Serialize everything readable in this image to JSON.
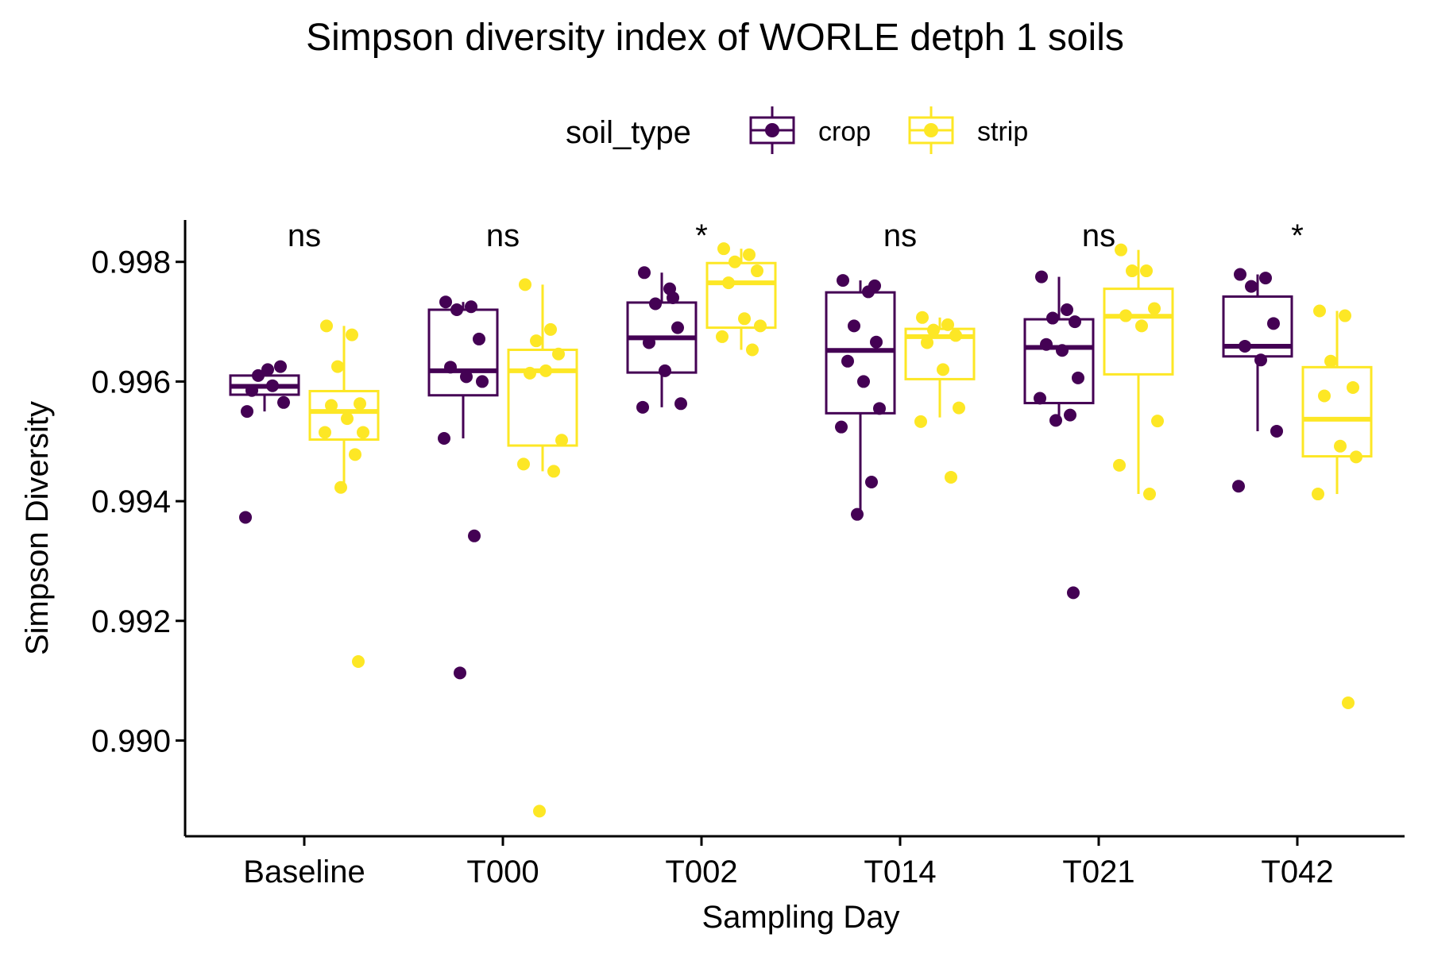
{
  "chart_data": {
    "type": "boxplot",
    "title": "Simpson diversity index of WORLE detph 1 soils",
    "xlabel": "Sampling Day",
    "ylabel": "Simpson Diversity",
    "ylim": [
      0.9884,
      0.9987
    ],
    "yticks": [
      0.99,
      0.992,
      0.994,
      0.996,
      0.998
    ],
    "ytick_labels": [
      "0.990",
      "0.992",
      "0.994",
      "0.996",
      "0.998"
    ],
    "categories": [
      "Baseline",
      "T000",
      "T002",
      "T014",
      "T021",
      "T042"
    ],
    "legend": {
      "title": "soil_type",
      "position": "top",
      "entries": [
        "crop",
        "strip"
      ]
    },
    "grid": false,
    "annotations": [
      "ns",
      "ns",
      "*",
      "ns",
      "ns",
      "*"
    ],
    "series": [
      {
        "name": "crop",
        "color": "#440154",
        "boxes": [
          {
            "q1": 0.99578,
            "median": 0.99592,
            "q3": 0.9961,
            "whisker_low": 0.9955,
            "whisker_high": 0.99625
          },
          {
            "q1": 0.99577,
            "median": 0.99618,
            "q3": 0.9972,
            "whisker_low": 0.99505,
            "whisker_high": 0.99733
          },
          {
            "q1": 0.99615,
            "median": 0.99673,
            "q3": 0.99732,
            "whisker_low": 0.99557,
            "whisker_high": 0.99782
          },
          {
            "q1": 0.99547,
            "median": 0.99652,
            "q3": 0.99749,
            "whisker_low": 0.99378,
            "whisker_high": 0.99769
          },
          {
            "q1": 0.99564,
            "median": 0.99657,
            "q3": 0.99704,
            "whisker_low": 0.99535,
            "whisker_high": 0.99775
          },
          {
            "q1": 0.99642,
            "median": 0.99659,
            "q3": 0.99742,
            "whisker_low": 0.99517,
            "whisker_high": 0.99779
          }
        ],
        "points": [
          [
            0.9955,
            0.99593,
            0.9961,
            0.99625,
            0.99585,
            0.9962,
            0.99565,
            0.99373
          ],
          [
            0.99733,
            0.99725,
            0.9972,
            0.99671,
            0.99624,
            0.99608,
            0.996,
            0.99505,
            0.99342,
            0.99113
          ],
          [
            0.99782,
            0.99755,
            0.9973,
            0.9969,
            0.99665,
            0.99618,
            0.99563,
            0.99557,
            0.9974
          ],
          [
            0.99769,
            0.9975,
            0.99693,
            0.99666,
            0.99634,
            0.996,
            0.99555,
            0.99524,
            0.99432,
            0.99378,
            0.9976
          ],
          [
            0.99775,
            0.9972,
            0.99706,
            0.997,
            0.99662,
            0.99652,
            0.99606,
            0.99572,
            0.99544,
            0.99535,
            0.99247
          ],
          [
            0.99779,
            0.99773,
            0.99759,
            0.99697,
            0.99659,
            0.99636,
            0.99517,
            0.99425
          ]
        ]
      },
      {
        "name": "strip",
        "color": "#FDE725",
        "boxes": [
          {
            "q1": 0.99503,
            "median": 0.9955,
            "q3": 0.99584,
            "whisker_low": 0.99423,
            "whisker_high": 0.99693
          },
          {
            "q1": 0.99493,
            "median": 0.99618,
            "q3": 0.99653,
            "whisker_low": 0.9945,
            "whisker_high": 0.99762
          },
          {
            "q1": 0.9969,
            "median": 0.99765,
            "q3": 0.99798,
            "whisker_low": 0.99653,
            "whisker_high": 0.99822
          },
          {
            "q1": 0.99604,
            "median": 0.99675,
            "q3": 0.99688,
            "whisker_low": 0.9954,
            "whisker_high": 0.99707
          },
          {
            "q1": 0.99612,
            "median": 0.99709,
            "q3": 0.99755,
            "whisker_low": 0.99412,
            "whisker_high": 0.9982
          },
          {
            "q1": 0.99475,
            "median": 0.99537,
            "q3": 0.99624,
            "whisker_low": 0.99412,
            "whisker_high": 0.99718
          }
        ],
        "points": [
          [
            0.99693,
            0.99678,
            0.99625,
            0.99563,
            0.9956,
            0.99538,
            0.99515,
            0.99515,
            0.99478,
            0.99423,
            0.99132
          ],
          [
            0.99762,
            0.99687,
            0.99668,
            0.99646,
            0.99614,
            0.99618,
            0.99502,
            0.99462,
            0.9945,
            0.98882
          ],
          [
            0.99822,
            0.99812,
            0.998,
            0.99785,
            0.99765,
            0.99705,
            0.99693,
            0.99675,
            0.99653
          ],
          [
            0.99707,
            0.99695,
            0.99686,
            0.99677,
            0.99665,
            0.9962,
            0.99556,
            0.99533,
            0.9944
          ],
          [
            0.9982,
            0.99785,
            0.99785,
            0.99722,
            0.9971,
            0.99693,
            0.99534,
            0.9946,
            0.99412
          ],
          [
            0.99718,
            0.9971,
            0.99634,
            0.9959,
            0.99576,
            0.99492,
            0.99474,
            0.99412,
            0.99063
          ]
        ]
      }
    ]
  }
}
